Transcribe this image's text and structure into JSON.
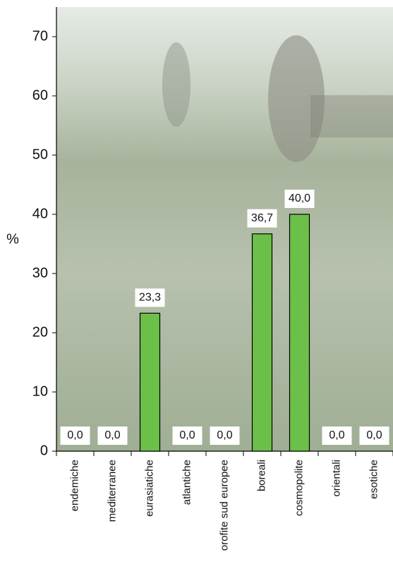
{
  "chart_data": {
    "type": "bar",
    "y_label": "%",
    "categories": [
      "endemiche",
      "mediterranee",
      "eurasiatiche",
      "atlantiche",
      "orofite sud europee",
      "boreali",
      "cosmopolite",
      "orientali",
      "esotiche"
    ],
    "values": [
      0,
      0,
      23.3,
      0,
      0,
      36.7,
      40,
      0,
      0
    ],
    "value_labels": [
      "0,0",
      "0,0",
      "23,3",
      "0,0",
      "0,0",
      "36,7",
      "40,0",
      "0,0",
      "0,0"
    ],
    "color": "#6cc04a",
    "ylim": [
      0,
      75
    ],
    "yticks": [
      0,
      10,
      20,
      30,
      40,
      50,
      60,
      70
    ]
  }
}
